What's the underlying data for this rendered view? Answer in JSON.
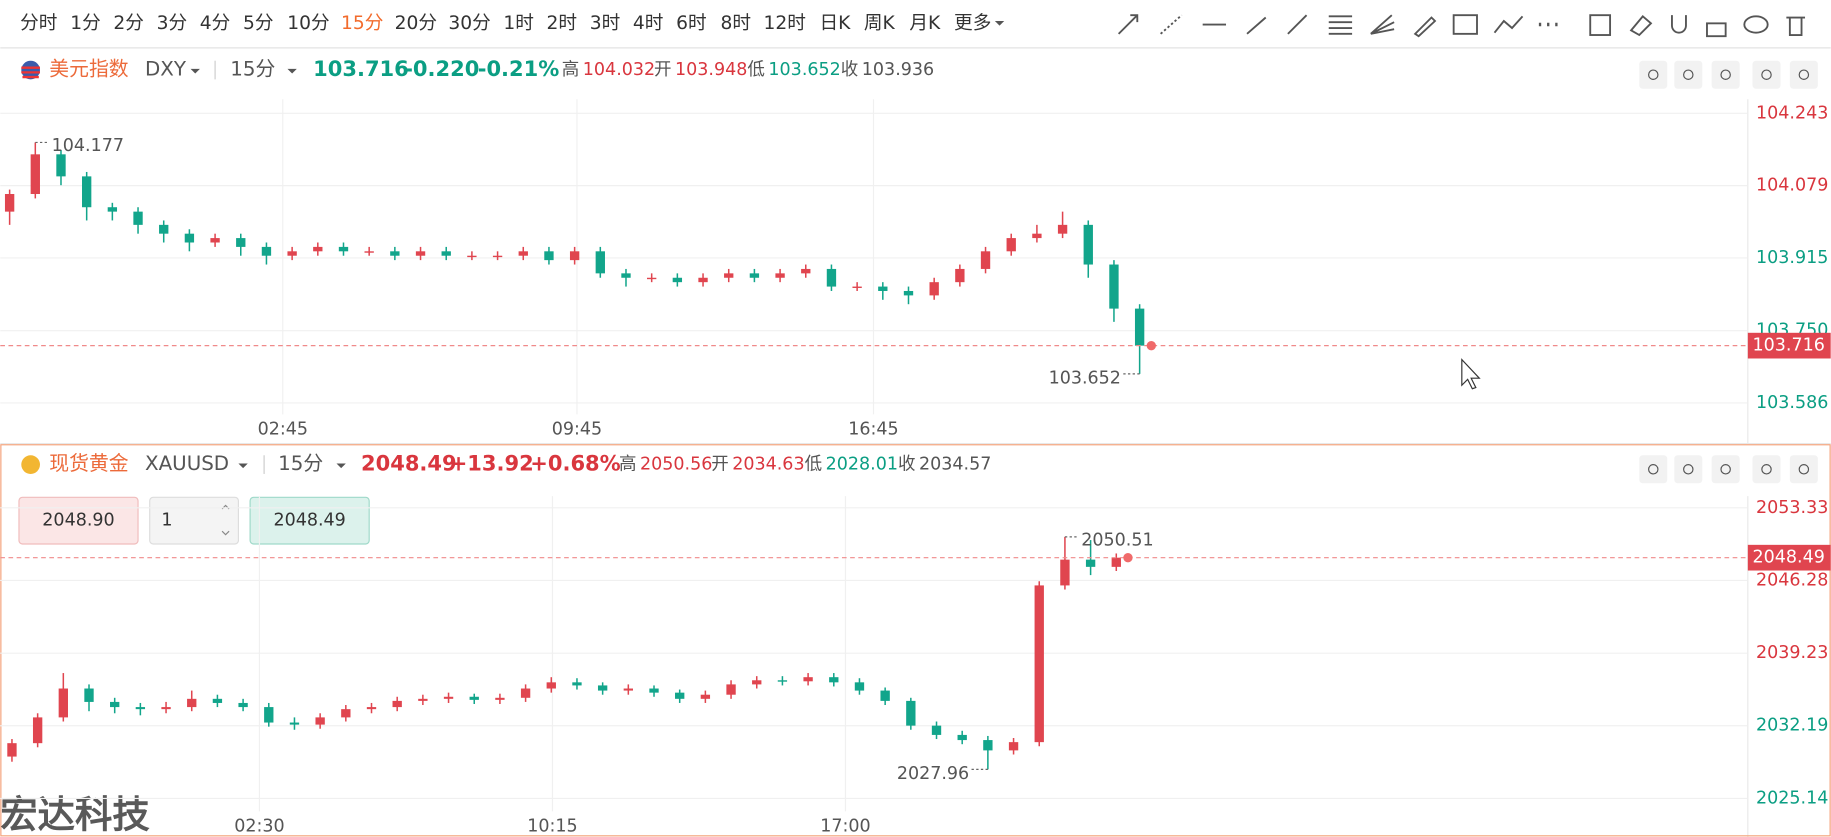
{
  "toolbar": {
    "intervals": [
      "分时",
      "1分",
      "2分",
      "3分",
      "4分",
      "5分",
      "10分",
      "15分",
      "20分",
      "30分",
      "1时",
      "2时",
      "3时",
      "4时",
      "6时",
      "8时",
      "12时",
      "日K",
      "周K",
      "月K",
      "更多"
    ],
    "active": 7
  },
  "panels": [
    {
      "name": "美元指数",
      "symbol": "DXY",
      "interval": "15分",
      "price": 103.716,
      "change": "-0.220",
      "change_pct": "-0.21%",
      "high_label": "高",
      "high": 104.032,
      "open_label": "开",
      "open": 103.948,
      "low_label": "低",
      "low": 103.652,
      "close_label": "收",
      "close": 103.936,
      "ylim": [
        103.56,
        104.275
      ],
      "yticks": [
        104.243,
        104.079,
        103.915,
        {
          "value": 103.75,
          "label": "103.750"
        },
        103.586
      ],
      "xticks": [
        "02:45",
        "09:45",
        "16:45"
      ],
      "max_label": "104.177",
      "min_label": "103.652",
      "candles": {
        "open": [
          104.02,
          104.06,
          104.15,
          104.1,
          104.03,
          104.02,
          103.99,
          103.97,
          103.95,
          103.96,
          103.94,
          103.92,
          103.93,
          103.94,
          103.93,
          103.93,
          103.92,
          103.93,
          103.92,
          103.92,
          103.92,
          103.93,
          103.91,
          103.93,
          103.88,
          103.87,
          103.87,
          103.86,
          103.87,
          103.88,
          103.87,
          103.88,
          103.89,
          103.85,
          103.85,
          103.84,
          103.83,
          103.86,
          103.89,
          103.93,
          103.96,
          103.97,
          103.99,
          103.9,
          103.8
        ],
        "high": [
          104.07,
          104.177,
          104.16,
          104.11,
          104.04,
          104.03,
          104.0,
          103.98,
          103.97,
          103.97,
          103.95,
          103.94,
          103.95,
          103.95,
          103.94,
          103.94,
          103.94,
          103.94,
          103.93,
          103.93,
          103.94,
          103.94,
          103.94,
          103.94,
          103.89,
          103.88,
          103.88,
          103.88,
          103.89,
          103.89,
          103.89,
          103.9,
          103.9,
          103.86,
          103.86,
          103.85,
          103.87,
          103.9,
          103.94,
          103.97,
          103.99,
          104.02,
          104.0,
          103.91,
          103.81
        ],
        "low": [
          103.99,
          104.05,
          104.08,
          104.0,
          104.0,
          103.97,
          103.95,
          103.93,
          103.94,
          103.92,
          103.9,
          103.91,
          103.92,
          103.92,
          103.92,
          103.91,
          103.91,
          103.91,
          103.91,
          103.91,
          103.91,
          103.9,
          103.9,
          103.87,
          103.85,
          103.86,
          103.85,
          103.85,
          103.86,
          103.86,
          103.86,
          103.87,
          103.84,
          103.84,
          103.82,
          103.81,
          103.82,
          103.85,
          103.88,
          103.92,
          103.95,
          103.96,
          103.87,
          103.77,
          103.652
        ],
        "close": [
          104.06,
          104.15,
          104.1,
          104.03,
          104.02,
          103.99,
          103.97,
          103.95,
          103.96,
          103.94,
          103.92,
          103.93,
          103.94,
          103.93,
          103.93,
          103.92,
          103.93,
          103.92,
          103.92,
          103.92,
          103.93,
          103.91,
          103.93,
          103.88,
          103.87,
          103.87,
          103.86,
          103.87,
          103.88,
          103.87,
          103.88,
          103.89,
          103.85,
          103.85,
          103.84,
          103.83,
          103.86,
          103.89,
          103.93,
          103.96,
          103.97,
          103.99,
          103.9,
          103.8,
          103.716
        ]
      }
    },
    {
      "name": "现货黄金",
      "symbol": "XAUUSD",
      "interval": "15分",
      "price": 2048.49,
      "change": "+13.92",
      "change_pct": "+0.68%",
      "high_label": "高",
      "high": 2050.56,
      "open_label": "开",
      "open": 2034.63,
      "low_label": "低",
      "low": 2028.01,
      "close_label": "收",
      "close": 2034.57,
      "ylim": [
        2023.89,
        2054.46
      ],
      "yticks": [
        2053.33,
        2046.28,
        2039.23,
        2032.19,
        2025.14
      ],
      "xticks": [
        "02:30",
        "10:15",
        "17:00"
      ],
      "max_label": "2050.51",
      "min_label": "2027.96",
      "candles": {
        "open": [
          2029.2,
          2030.5,
          2033,
          2035.8,
          2034.5,
          2034,
          2033.8,
          2034,
          2034.8,
          2034.4,
          2034,
          2032.5,
          2032.3,
          2033,
          2033.8,
          2034,
          2034.6,
          2034.8,
          2035,
          2034.7,
          2034.9,
          2035.8,
          2036.4,
          2036.1,
          2035.6,
          2035.8,
          2035.4,
          2034.8,
          2035.2,
          2036.2,
          2036.6,
          2036.5,
          2036.9,
          2036.4,
          2035.6,
          2034.6,
          2032.2,
          2031.3,
          2030.8,
          2029.8,
          2030.6,
          2045.8,
          2048.3,
          2047.6
        ],
        "high": [
          2030.9,
          2033.4,
          2037.3,
          2036.2,
          2034.9,
          2034.4,
          2034.5,
          2035.6,
          2035.2,
          2034.8,
          2034.4,
          2033,
          2033.4,
          2034.2,
          2034.4,
          2035,
          2035.2,
          2035.4,
          2035.3,
          2035.3,
          2036.2,
          2036.9,
          2036.8,
          2036.4,
          2036.2,
          2036.1,
          2035.7,
          2035.6,
          2036.6,
          2037,
          2037,
          2037.3,
          2037.3,
          2036.8,
          2035.9,
          2034.9,
          2032.6,
          2031.7,
          2031.2,
          2031,
          2046.2,
          2050.51,
          2050.2,
          2048.9
        ],
        "low": [
          2028.7,
          2030.1,
          2032.6,
          2033.6,
          2033.4,
          2033.2,
          2033.4,
          2033.6,
          2034,
          2033.6,
          2032.1,
          2031.8,
          2031.9,
          2032.6,
          2033.4,
          2033.6,
          2034.2,
          2034.4,
          2034.3,
          2034.3,
          2034.5,
          2035.4,
          2035.7,
          2035.2,
          2035.2,
          2035,
          2034.4,
          2034.4,
          2034.8,
          2035.8,
          2036.1,
          2036.1,
          2036,
          2035.2,
          2034.2,
          2031.8,
          2030.9,
          2030.4,
          2027.96,
          2029.4,
          2030.2,
          2045.4,
          2046.8,
          2047.2
        ],
        "close": [
          2030.5,
          2033,
          2035.8,
          2034.5,
          2034,
          2033.8,
          2034,
          2034.8,
          2034.4,
          2034,
          2032.5,
          2032.3,
          2033,
          2033.8,
          2034,
          2034.6,
          2034.8,
          2035,
          2034.7,
          2034.9,
          2035.8,
          2036.4,
          2036.1,
          2035.6,
          2035.8,
          2035.4,
          2034.8,
          2035.2,
          2036.2,
          2036.6,
          2036.5,
          2036.9,
          2036.4,
          2035.6,
          2034.6,
          2032.2,
          2031.3,
          2030.8,
          2029.8,
          2030.6,
          2045.8,
          2048.3,
          2047.6,
          2048.49
        ]
      }
    }
  ],
  "order": {
    "sell": "2048.90",
    "qty": 1,
    "buy": "2048.49"
  },
  "watermark": "宏达科技"
}
